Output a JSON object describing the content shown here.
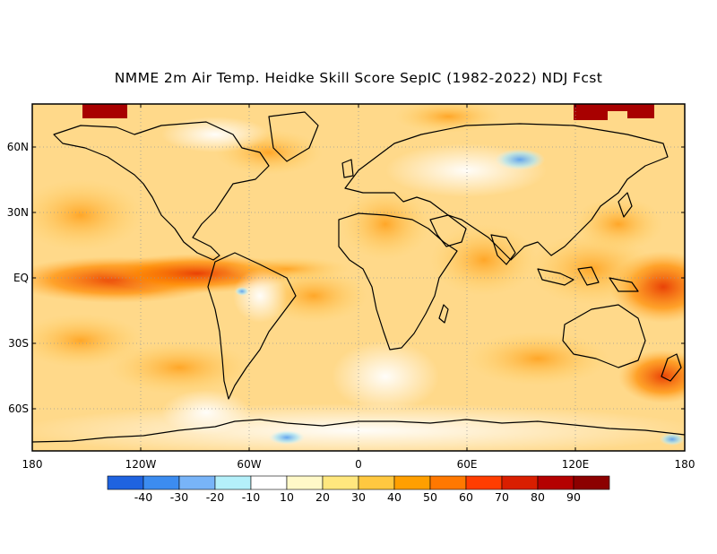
{
  "title": "NMME 2m Air Temp. Heidke Skill Score SepIC (1982-2022) NDJ Fcst",
  "lat_labels": [
    "60N",
    "30N",
    "EQ",
    "30S",
    "60S"
  ],
  "lon_labels": [
    "180",
    "120W",
    "60W",
    "0",
    "60E",
    "120E",
    "180"
  ],
  "colorbar": {
    "colors": [
      "#1f63e0",
      "#3c8cf0",
      "#78b4f8",
      "#b4f0fa",
      "#ffffff",
      "#fff9c8",
      "#ffe77e",
      "#ffc840",
      "#ff9f00",
      "#ff7800",
      "#ff3d00",
      "#d91e00",
      "#b40000",
      "#8c0000"
    ],
    "labels": [
      "-40",
      "-30",
      "-20",
      "-10",
      "10",
      "20",
      "30",
      "40",
      "50",
      "60",
      "70",
      "80",
      "90"
    ]
  }
}
